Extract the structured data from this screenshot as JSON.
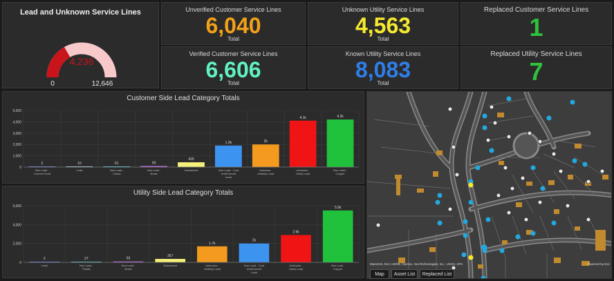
{
  "gauge": {
    "title": "Lead and Unknown Service Lines",
    "value": "4,236",
    "min": "0",
    "max": "12,646",
    "fraction": 0.335,
    "colors": {
      "fill": "#c9141c",
      "track": "#f7c9cb",
      "value": "#c9141c"
    }
  },
  "kpis": {
    "unverified_customer": {
      "title": "Unverified Customer Service Lines",
      "value": "6,040",
      "sub": "Total",
      "color": "#f3a118"
    },
    "unknown_utility": {
      "title": "Unknown Utility Service Lines",
      "value": "4,563",
      "sub": "Total",
      "color": "#f6ea2e"
    },
    "replaced_customer": {
      "title": "Replaced Customer Service Lines",
      "value": "1",
      "color": "#2fc23c"
    },
    "verified_customer": {
      "title": "Verified Customer Service Lines",
      "value": "6,606",
      "sub": "Total",
      "color": "#5ff2c2"
    },
    "known_utility": {
      "title": "Known Utility Service Lines",
      "value": "8,083",
      "sub": "Total",
      "color": "#2f7ee8"
    },
    "replaced_utility": {
      "title": "Replaced Utility Service Lines",
      "value": "7",
      "color": "#2fc23c"
    }
  },
  "chart_data": [
    {
      "type": "bar",
      "title": "Customer Side Lead Category Totals",
      "ylim": [
        0,
        5000
      ],
      "yticks": [
        "0",
        "1,000",
        "2,000",
        "3,000",
        "4,000",
        "5,000"
      ],
      "ytick_values": [
        0,
        1000,
        2000,
        3000,
        4000,
        5000
      ],
      "categories": [
        [
          "Non Lead -",
          "Current Good"
        ],
        [
          "Lead"
        ],
        [
          "Non Lead -",
          "Choka"
        ],
        [
          "Non Lead -",
          "Brass"
        ],
        [
          "Galvanized"
        ],
        [
          "Non Lead - Cust",
          "Unit/Current",
          "Lead"
        ],
        [
          "Unknown -",
          "Unlikely Lead"
        ],
        [
          "Unknown -",
          "Likely Lead"
        ],
        [
          "Non Lead -",
          "Copper"
        ]
      ],
      "values": [
        2,
        10,
        61,
        93,
        425,
        1900,
        2000,
        4100,
        4200
      ],
      "labels": [
        "2",
        "10",
        "61",
        "93",
        "425",
        "1.9k",
        "2k",
        "4.1k",
        "4.2k"
      ],
      "colors": [
        "#7c8cf0",
        "#b7e6f2",
        "#66d6e6",
        "#c86ef0",
        "#f4f07a",
        "#3d93f0",
        "#f39a1f",
        "#f01414",
        "#20c23b"
      ]
    },
    {
      "type": "bar",
      "title": "Utility Side Lead Category Totals",
      "ylim": [
        0,
        6000
      ],
      "yticks": [
        "0",
        "2,000",
        "4,000",
        "6,000"
      ],
      "ytick_values": [
        0,
        2000,
        4000,
        6000
      ],
      "categories": [
        [
          "Lead"
        ],
        [
          "Non Lead -",
          "Plastic"
        ],
        [
          "Non Lead -",
          "Brass"
        ],
        [
          "Galvanized"
        ],
        [
          "Unknown -",
          "Unlikely Lead"
        ],
        [
          "Non Lead - Cust",
          "Unit/Current",
          "Lead"
        ],
        [
          "Unknown -",
          "Likely Lead"
        ],
        [
          "Non Lead -",
          "Copper"
        ]
      ],
      "values": [
        2,
        27,
        93,
        367,
        1700,
        2000,
        2900,
        5500
      ],
      "labels": [
        "2",
        "27",
        "93",
        "367",
        "1.7k",
        "2k",
        "2.9k",
        "5.5k"
      ],
      "colors": [
        "#7c8cf0",
        "#66d6e6",
        "#c86ef0",
        "#f4f07a",
        "#f39a1f",
        "#3d93f0",
        "#f01414",
        "#20c23b"
      ]
    }
  ],
  "map": {
    "attribution": "MassGIS, Esri, HERE, Garmin, GeoTechnologies, Inc., USGS, EPA",
    "powered_by": "Powered by Esri",
    "tabs": [
      "Map",
      "Asset List",
      "Replaced List"
    ],
    "tool_icons": [
      "close-icon",
      "search-icon",
      "list-icon",
      "grid-icon"
    ]
  }
}
